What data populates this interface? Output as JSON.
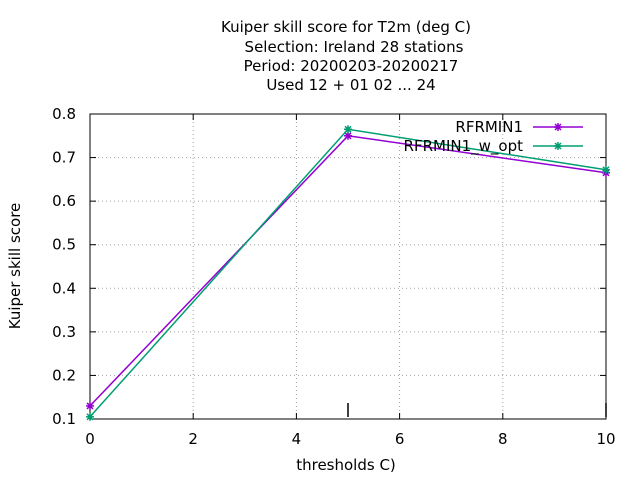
{
  "chart_data": {
    "type": "line",
    "title_lines": [
      "Kuiper skill score  for T2m (deg C)",
      "Selection: Ireland     28 stations",
      "Period: 20200203-20200217",
      "Used  12 + 01 02 ... 24"
    ],
    "xlabel": "thresholds C)",
    "ylabel": "Kuiper skill score",
    "xlim": [
      0,
      10
    ],
    "ylim": [
      0.1,
      0.8
    ],
    "x_ticks": [
      "0",
      "2",
      "4",
      "6",
      "8",
      "10"
    ],
    "y_ticks": [
      "0.1",
      "0.2",
      "0.3",
      "0.4",
      "0.5",
      "0.6",
      "0.7",
      "0.8"
    ],
    "grid": true,
    "legend_position": "top-right",
    "series": [
      {
        "name": "RFRMIN1",
        "color": "#9400d3",
        "x": [
          0,
          5,
          10
        ],
        "y": [
          0.13,
          0.75,
          0.665
        ]
      },
      {
        "name": "RFRMIN1_w_opt",
        "color": "#009e73",
        "x": [
          0,
          5,
          10
        ],
        "y": [
          0.105,
          0.765,
          0.672
        ]
      }
    ],
    "markers_x": [
      5,
      10
    ]
  }
}
